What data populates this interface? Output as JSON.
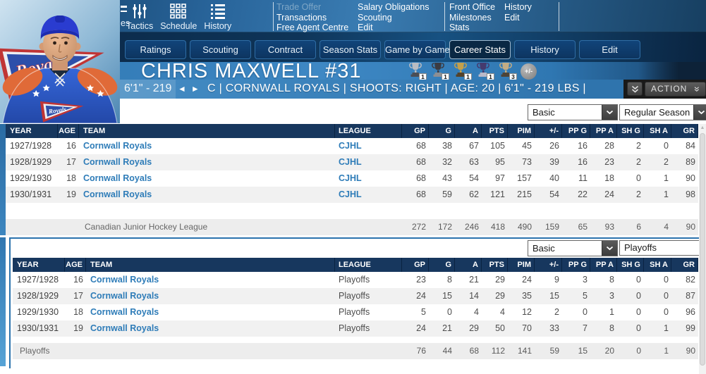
{
  "colors": {
    "accent_blue": "#2e7cb8",
    "header_navy": "#17375e",
    "band_blue": "#3e88c4",
    "panel_border": "#2b73ad"
  },
  "menu": {
    "icon_items": [
      {
        "label": "es",
        "icon": "lines-icon"
      },
      {
        "label": "Tactics",
        "icon": "tactics-icon"
      },
      {
        "label": "Schedule",
        "icon": "schedule-icon"
      },
      {
        "label": "History",
        "icon": "history-icon"
      }
    ],
    "columns": [
      {
        "items": [
          {
            "label": "Trade Offer",
            "disabled": true
          },
          {
            "label": "Transactions"
          },
          {
            "label": "Free Agent Centre"
          }
        ]
      },
      {
        "items": [
          {
            "label": "Salary Obligations"
          },
          {
            "label": "Scouting"
          },
          {
            "label": "Edit"
          }
        ]
      },
      {
        "items": [
          {
            "label": "Front Office"
          },
          {
            "label": "Milestones"
          },
          {
            "label": "Stats"
          }
        ]
      },
      {
        "items": [
          {
            "label": "History"
          },
          {
            "label": "Edit"
          }
        ]
      }
    ]
  },
  "tabs": [
    {
      "label": "Ratings"
    },
    {
      "label": "Scouting"
    },
    {
      "label": "Contract"
    },
    {
      "label": "Season Stats"
    },
    {
      "label": "Game by Game"
    },
    {
      "label": "Career Stats",
      "active": true
    },
    {
      "label": "History"
    },
    {
      "label": "Edit"
    }
  ],
  "player": {
    "name": "CHRIS MAXWELL #31",
    "trophies": [
      {
        "name": "silver-trophy",
        "count": "1",
        "cup": "#b9bcc2",
        "base": "#4a4e55"
      },
      {
        "name": "black-trophy",
        "count": "1",
        "cup": "#3b3b42",
        "base": "#8d8f94"
      },
      {
        "name": "gold-trophy",
        "count": "1",
        "cup": "#c5a04a",
        "base": "#54422a"
      },
      {
        "name": "purple-trophy",
        "count": "1",
        "cup": "#453a6e",
        "base": "#b9b9c9"
      },
      {
        "name": "bronze-trophy",
        "count": "3",
        "cup": "#c2ac84",
        "base": "#4d4438"
      }
    ],
    "plusminus_label": "+/-",
    "size_label": "6'1\" - 219",
    "nav_prev": "◄",
    "nav_next": "►",
    "info_line": "C | CORNWALL ROYALS | SHOOTS: RIGHT | AGE: 20 | 6'1\" - 219 LBS |",
    "action_label": "ACTION",
    "jersey_wordmark": "Royals"
  },
  "sections": [
    {
      "filter_type": "Basic",
      "filter_scope": "Regular Season",
      "league_linked": true,
      "columns": [
        "YEAR",
        "AGE",
        "TEAM",
        "LEAGUE",
        "GP",
        "G",
        "A",
        "PTS",
        "PIM",
        "+/-",
        "PP G",
        "PP A",
        "SH G",
        "SH A",
        "GR"
      ],
      "rows": [
        {
          "year": "1927/1928",
          "age": "16",
          "team": "Cornwall Royals",
          "league": "CJHL",
          "stats": [
            68,
            38,
            67,
            105,
            45,
            26,
            16,
            28,
            2,
            0,
            84
          ]
        },
        {
          "year": "1928/1929",
          "age": "17",
          "team": "Cornwall Royals",
          "league": "CJHL",
          "stats": [
            68,
            32,
            63,
            95,
            73,
            39,
            16,
            23,
            2,
            2,
            89
          ]
        },
        {
          "year": "1929/1930",
          "age": "18",
          "team": "Cornwall Royals",
          "league": "CJHL",
          "stats": [
            68,
            43,
            54,
            97,
            157,
            40,
            11,
            18,
            0,
            1,
            90
          ]
        },
        {
          "year": "1930/1931",
          "age": "19",
          "team": "Cornwall Royals",
          "league": "CJHL",
          "stats": [
            68,
            59,
            62,
            121,
            215,
            54,
            22,
            24,
            2,
            1,
            98
          ]
        }
      ],
      "summary": {
        "label": "Canadian Junior Hockey League",
        "values": [
          272,
          172,
          246,
          418,
          490,
          159,
          65,
          93,
          6,
          4,
          90
        ]
      }
    },
    {
      "filter_type": "Basic",
      "filter_scope": "Playoffs",
      "league_linked": false,
      "columns": [
        "YEAR",
        "AGE",
        "TEAM",
        "LEAGUE",
        "GP",
        "G",
        "A",
        "PTS",
        "PIM",
        "+/-",
        "PP G",
        "PP A",
        "SH G",
        "SH A",
        "GR"
      ],
      "rows": [
        {
          "year": "1927/1928",
          "age": "16",
          "team": "Cornwall Royals",
          "league": "Playoffs",
          "stats": [
            23,
            8,
            21,
            29,
            24,
            9,
            3,
            8,
            0,
            0,
            82
          ]
        },
        {
          "year": "1928/1929",
          "age": "17",
          "team": "Cornwall Royals",
          "league": "Playoffs",
          "stats": [
            24,
            15,
            14,
            29,
            35,
            15,
            5,
            3,
            0,
            0,
            87
          ]
        },
        {
          "year": "1929/1930",
          "age": "18",
          "team": "Cornwall Royals",
          "league": "Playoffs",
          "stats": [
            5,
            0,
            4,
            4,
            12,
            2,
            0,
            1,
            0,
            0,
            96
          ]
        },
        {
          "year": "1930/1931",
          "age": "19",
          "team": "Cornwall Royals",
          "league": "Playoffs",
          "stats": [
            24,
            21,
            29,
            50,
            70,
            33,
            7,
            8,
            0,
            1,
            99
          ]
        }
      ],
      "summary": {
        "label": "Playoffs",
        "values": [
          76,
          44,
          68,
          112,
          141,
          59,
          15,
          20,
          0,
          1,
          90
        ]
      }
    }
  ]
}
